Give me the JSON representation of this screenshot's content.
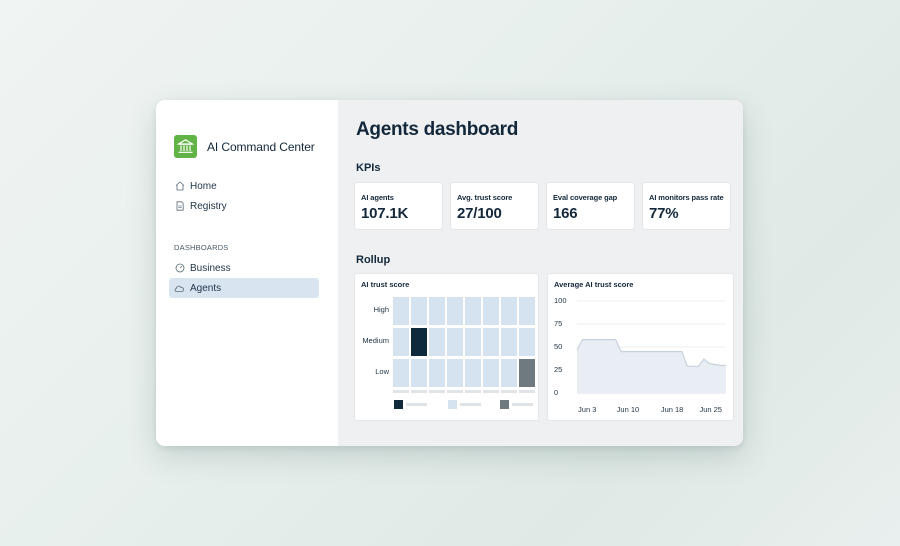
{
  "sidebar": {
    "app_title": "AI Command Center",
    "logo_icon": "bank-building-icon",
    "nav": [
      {
        "label": "Home",
        "icon": "home-icon"
      },
      {
        "label": "Registry",
        "icon": "document-icon"
      }
    ],
    "section_label": "DASHBOARDS",
    "dashboards": [
      {
        "label": "Business",
        "icon": "gauge-icon",
        "active": false
      },
      {
        "label": "Agents",
        "icon": "cloud-icon",
        "active": true
      }
    ]
  },
  "main": {
    "title": "Agents dashboard",
    "kpis_title": "KPIs",
    "kpis": [
      {
        "label": "AI agents",
        "value": "107.1K"
      },
      {
        "label": "Avg. trust score",
        "value": "27/100"
      },
      {
        "label": "Eval coverage gap",
        "value": "166"
      },
      {
        "label": "AI monitors pass rate",
        "value": "77%"
      }
    ],
    "rollup_title": "Rollup"
  },
  "colors": {
    "accent_green": "#62b346",
    "heatmap_empty": "#d5e2ef",
    "heatmap_dark": "#0f2a3a",
    "heatmap_gray": "#6e7a80",
    "line": "#c7d1dc",
    "area": "#e9eef5"
  },
  "chart_data": [
    {
      "type": "heatmap",
      "title": "AI trust score",
      "rows": [
        "High",
        "Medium",
        "Low"
      ],
      "columns": 8,
      "cells": [
        {
          "row": "Medium",
          "col": 2,
          "level": "dark"
        },
        {
          "row": "Low",
          "col": 8,
          "level": "gray"
        }
      ]
    },
    {
      "type": "area",
      "title": "Average AI trust score",
      "x_ticks": [
        "Jun 3",
        "Jun 10",
        "Jun 18",
        "Jun 25"
      ],
      "y_ticks": [
        100,
        75,
        50,
        25,
        0
      ],
      "ylim": [
        0,
        100
      ],
      "x": [
        "Jun 1",
        "Jun 2",
        "Jun 5",
        "Jun 8",
        "Jun 9",
        "Jun 20",
        "Jun 21",
        "Jun 23",
        "Jun 24",
        "Jun 25",
        "Jun 27",
        "Jun 28"
      ],
      "values": [
        47,
        58,
        58,
        58,
        45,
        45,
        29,
        29,
        37,
        32,
        30,
        30
      ],
      "grid": true
    }
  ]
}
